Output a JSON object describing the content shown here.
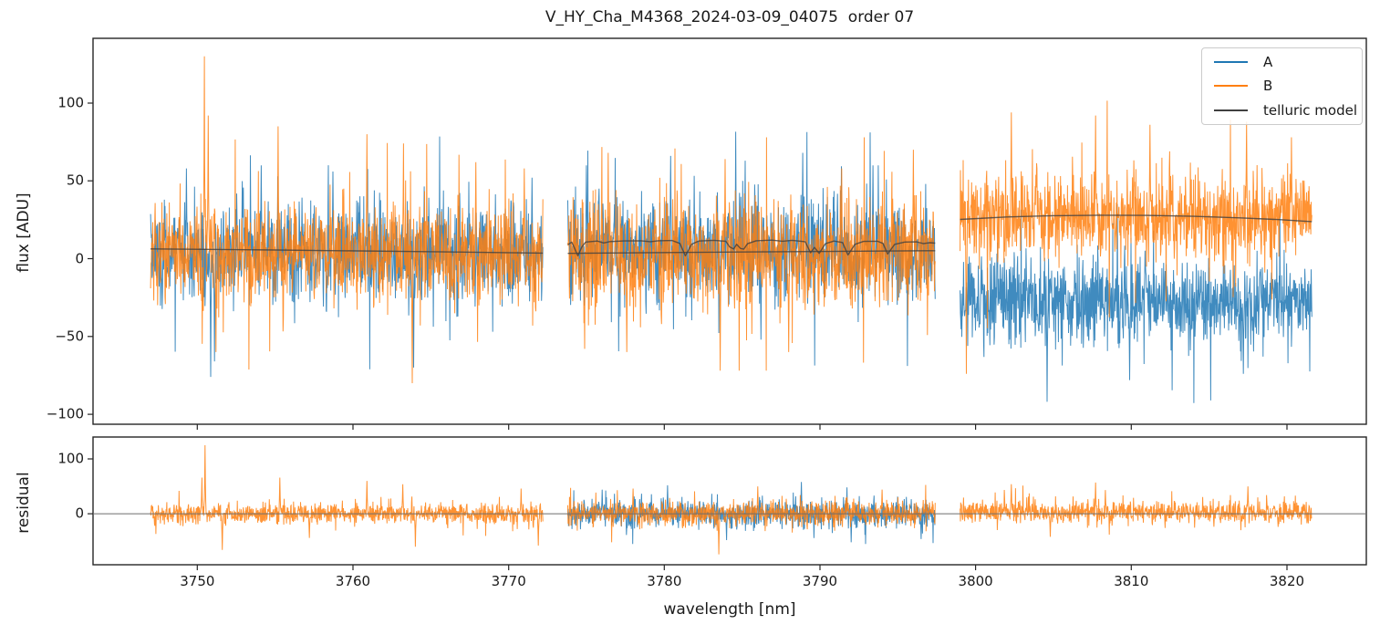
{
  "title": "V_HY_Cha_M4368_2024-03-09_04075  order 07",
  "legend": [
    {
      "label": "A",
      "color": "#1f77b4"
    },
    {
      "label": "B",
      "color": "#ff7f0e"
    },
    {
      "label": "telluric model",
      "color": "#404040"
    }
  ],
  "axes": {
    "xlabel": "wavelength [nm]",
    "xlim": [
      3743.3,
      3825.1
    ],
    "xticks": {
      "values": [
        3750,
        3760,
        3770,
        3780,
        3790,
        3800,
        3810,
        3820
      ],
      "labels": [
        "3750",
        "3760",
        "3770",
        "3780",
        "3790",
        "3800",
        "3810",
        "3820"
      ]
    },
    "top": {
      "ylabel": "flux [ADU]",
      "ylim": [
        -106.4,
        141.6
      ],
      "ticks": {
        "values": [
          100,
          50,
          0,
          -50,
          -100
        ],
        "labels": [
          "100",
          "50",
          "0",
          "−50",
          "−100"
        ]
      }
    },
    "bottom": {
      "ylabel": "residual",
      "ylim": [
        -93,
        140
      ],
      "ticks": {
        "values": [
          100,
          0
        ],
        "labels": [
          "100",
          "0"
        ]
      },
      "zero_line_color": "#6e6e6e"
    }
  },
  "chart_data": {
    "type": "line",
    "title": "V_HY_Cha_M4368_2024-03-09_04075  order 07",
    "xlabel": "wavelength [nm]",
    "x_unit": "nm",
    "x_range": [
      3743.3,
      3825.1
    ],
    "grid": false,
    "legend_position": "upper right",
    "description": "Echelle spectrum order 07 in three detector segments; noisy flux traces for nod positions A and B with telluric model overlay, plus residual panel.",
    "panels": [
      {
        "name": "flux",
        "ylabel": "flux [ADU]",
        "y_range": [
          -106.4,
          141.6
        ],
        "segments": [
          [
            3747.0,
            3772.2
          ],
          [
            3773.8,
            3797.4
          ],
          [
            3799.0,
            3821.6
          ]
        ],
        "series": [
          {
            "name": "A",
            "color": "#1f77b4",
            "opacity": 0.85,
            "center": [
              [
                5,
                3
              ],
              [
                7,
                6
              ],
              [
                -27,
                -27
              ]
            ],
            "sigma": [
              15,
              16.5,
              13.5
            ],
            "peaks": [
              [
                3749.3,
                58
              ],
              [
                3750.85,
                -76
              ],
              [
                3751.1,
                -66
              ],
              [
                3754.1,
                60
              ],
              [
                3758.7,
                56
              ],
              [
                3763.9,
                -70
              ],
              [
                3771.5,
                52
              ],
              [
                3775.0,
                60
              ],
              [
                3780.4,
                66
              ],
              [
                3785.2,
                63
              ],
              [
                3786.2,
                -52
              ],
              [
                3788.9,
                68
              ],
              [
                3793.4,
                60
              ],
              [
                3804.6,
                -92
              ],
              [
                3809.9,
                -78
              ],
              [
                3817.2,
                -74
              ]
            ]
          },
          {
            "name": "B",
            "color": "#ff7f0e",
            "opacity": 0.85,
            "center": [
              [
                4,
                3
              ],
              [
                3,
                3
              ],
              [
                26.5,
                26.5
              ]
            ],
            "sigma": [
              15.5,
              17,
              13.5
            ],
            "peaks": [
              [
                3750.45,
                130
              ],
              [
                3750.7,
                92
              ],
              [
                3751.2,
                -60
              ],
              [
                3755.2,
                85
              ],
              [
                3760.9,
                80
              ],
              [
                3763.25,
                74
              ],
              [
                3763.8,
                -80
              ],
              [
                3767.9,
                62
              ],
              [
                3771.0,
                58
              ],
              [
                3776.4,
                68
              ],
              [
                3777.6,
                -60
              ],
              [
                3783.6,
                -72
              ],
              [
                3783.9,
                64
              ],
              [
                3788.0,
                -60
              ],
              [
                3791.4,
                58
              ],
              [
                3796.0,
                70
              ],
              [
                3799.4,
                -74
              ],
              [
                3802.3,
                94
              ],
              [
                3807.7,
                92
              ],
              [
                3811.2,
                86
              ],
              [
                3817.4,
                88
              ],
              [
                3820.3,
                78
              ]
            ]
          }
        ],
        "telluric": {
          "name": "telluric model",
          "color": "#404040",
          "opacity": 0.8,
          "lines": [
            [
              [
                3747.0,
                6.3
              ],
              [
                3755.0,
                5.6
              ],
              [
                3764.0,
                4.6
              ],
              [
                3772.2,
                3.6
              ]
            ],
            [
              [
                3773.8,
                9.0
              ],
              [
                3774.05,
                10.6
              ],
              [
                3774.2,
                7.5
              ],
              [
                3774.45,
                1.8
              ],
              [
                3774.7,
                7.5
              ],
              [
                3774.95,
                10.7
              ],
              [
                3775.7,
                11.3
              ],
              [
                3776.1,
                10.1
              ],
              [
                3776.5,
                11.0
              ],
              [
                3777.4,
                11.4
              ],
              [
                3778.5,
                11.5
              ],
              [
                3779.1,
                10.9
              ],
              [
                3779.6,
                11.5
              ],
              [
                3780.5,
                11.7
              ],
              [
                3781.0,
                9.8
              ],
              [
                3781.35,
                1.8
              ],
              [
                3781.75,
                9.2
              ],
              [
                3782.2,
                11.3
              ],
              [
                3783.2,
                11.8
              ],
              [
                3783.95,
                11.2
              ],
              [
                3784.2,
                7.6
              ],
              [
                3784.45,
                6.2
              ],
              [
                3784.65,
                9.2
              ],
              [
                3784.9,
                6.6
              ],
              [
                3785.1,
                6.1
              ],
              [
                3785.35,
                9.6
              ],
              [
                3785.9,
                11.5
              ],
              [
                3786.9,
                11.9
              ],
              [
                3787.6,
                11.2
              ],
              [
                3788.2,
                11.8
              ],
              [
                3789.05,
                10.9
              ],
              [
                3789.4,
                3.8
              ],
              [
                3789.65,
                7.2
              ],
              [
                3789.95,
                3.4
              ],
              [
                3790.35,
                9.6
              ],
              [
                3790.9,
                11.3
              ],
              [
                3791.45,
                10.4
              ],
              [
                3791.8,
                2.4
              ],
              [
                3792.25,
                9.2
              ],
              [
                3792.8,
                11.1
              ],
              [
                3793.7,
                11.2
              ],
              [
                3794.05,
                9.8
              ],
              [
                3794.35,
                3.0
              ],
              [
                3794.8,
                9.2
              ],
              [
                3795.45,
                10.7
              ],
              [
                3796.2,
                10.8
              ],
              [
                3796.65,
                9.7
              ],
              [
                3797.05,
                10.3
              ],
              [
                3797.4,
                10.0
              ]
            ],
            [
              [
                3773.8,
                3.4
              ],
              [
                3785.0,
                4.3
              ],
              [
                3797.4,
                5.1
              ]
            ],
            [
              [
                3799.0,
                25.2
              ],
              [
                3802.0,
                26.8
              ],
              [
                3805.0,
                27.6
              ],
              [
                3808.0,
                27.9
              ],
              [
                3811.0,
                27.8
              ],
              [
                3814.0,
                27.2
              ],
              [
                3817.0,
                26.2
              ],
              [
                3819.5,
                25.1
              ],
              [
                3821.6,
                23.8
              ]
            ]
          ]
        }
      },
      {
        "name": "residual",
        "ylabel": "residual",
        "y_range": [
          -93,
          140
        ],
        "segments": [
          [
            3747.0,
            3772.2
          ],
          [
            3773.8,
            3797.4
          ],
          [
            3799.0,
            3821.6
          ]
        ],
        "zero_line": true,
        "series": [
          {
            "name": "A",
            "color": "#1f77b4",
            "opacity": 0.85,
            "center": [
              null,
              [
                0,
                0
              ],
              null
            ],
            "sigma": [
              0,
              12,
              0
            ],
            "peaks": [
              [
                3776.0,
                44
              ],
              [
                3780.2,
                52
              ],
              [
                3784.0,
                -48
              ],
              [
                3788.8,
                58
              ],
              [
                3792.0,
                -52
              ],
              [
                3796.5,
                -46
              ]
            ]
          },
          {
            "name": "B",
            "color": "#ff7f0e",
            "opacity": 0.85,
            "center": [
              [
                0,
                0
              ],
              [
                0,
                0
              ],
              [
                3.5,
                3.5
              ]
            ],
            "sigma": [
              9.5,
              11.5,
              10
            ],
            "peaks": [
              [
                3750.3,
                66
              ],
              [
                3750.5,
                125
              ],
              [
                3751.6,
                -66
              ],
              [
                3755.3,
                66
              ],
              [
                3757.2,
                -44
              ],
              [
                3760.9,
                60
              ],
              [
                3763.2,
                54
              ],
              [
                3764.0,
                -60
              ],
              [
                3770.8,
                46
              ],
              [
                3771.9,
                -58
              ],
              [
                3778.0,
                46
              ],
              [
                3783.5,
                -74
              ],
              [
                3786.0,
                50
              ],
              [
                3794.0,
                44
              ],
              [
                3802.3,
                54
              ],
              [
                3804.8,
                -42
              ],
              [
                3807.7,
                57
              ],
              [
                3817.5,
                50
              ]
            ]
          }
        ]
      }
    ]
  }
}
